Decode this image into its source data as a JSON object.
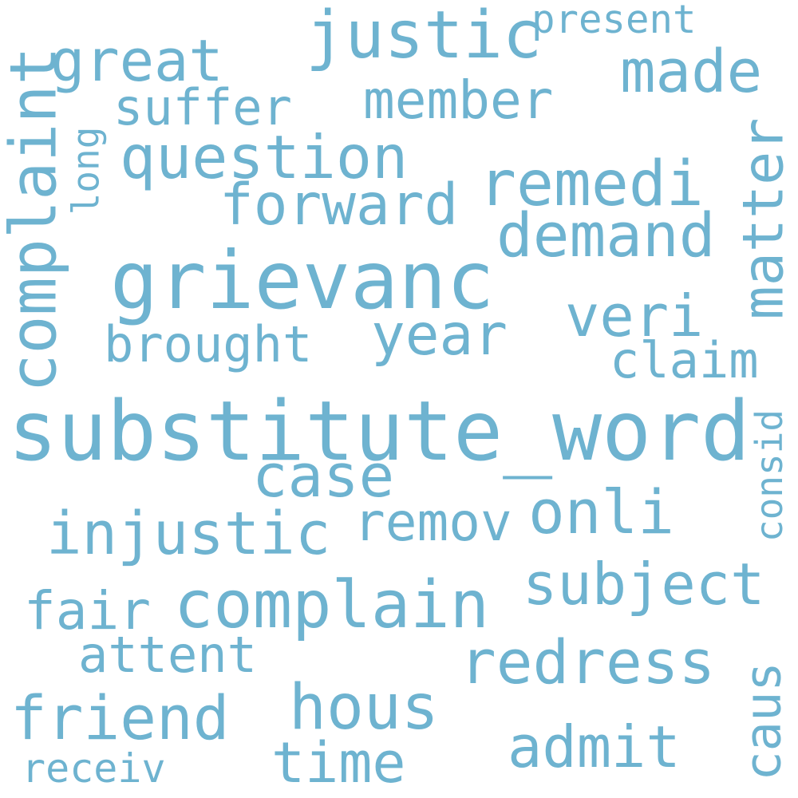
{
  "color": "#6eb3d0",
  "words": [
    "substitute_word",
    "grievanc",
    "complaint",
    "justic",
    "complain",
    "question",
    "remedi",
    "forward",
    "demand",
    "injustic",
    "redress",
    "matter",
    "member",
    "year",
    "veri",
    "brought",
    "case",
    "remov",
    "onli",
    "subject",
    "great",
    "suffer",
    "made",
    "present",
    "long",
    "claim",
    "consid",
    "fair",
    "attent",
    "friend",
    "hous",
    "time",
    "admit",
    "caus",
    "receiv"
  ]
}
